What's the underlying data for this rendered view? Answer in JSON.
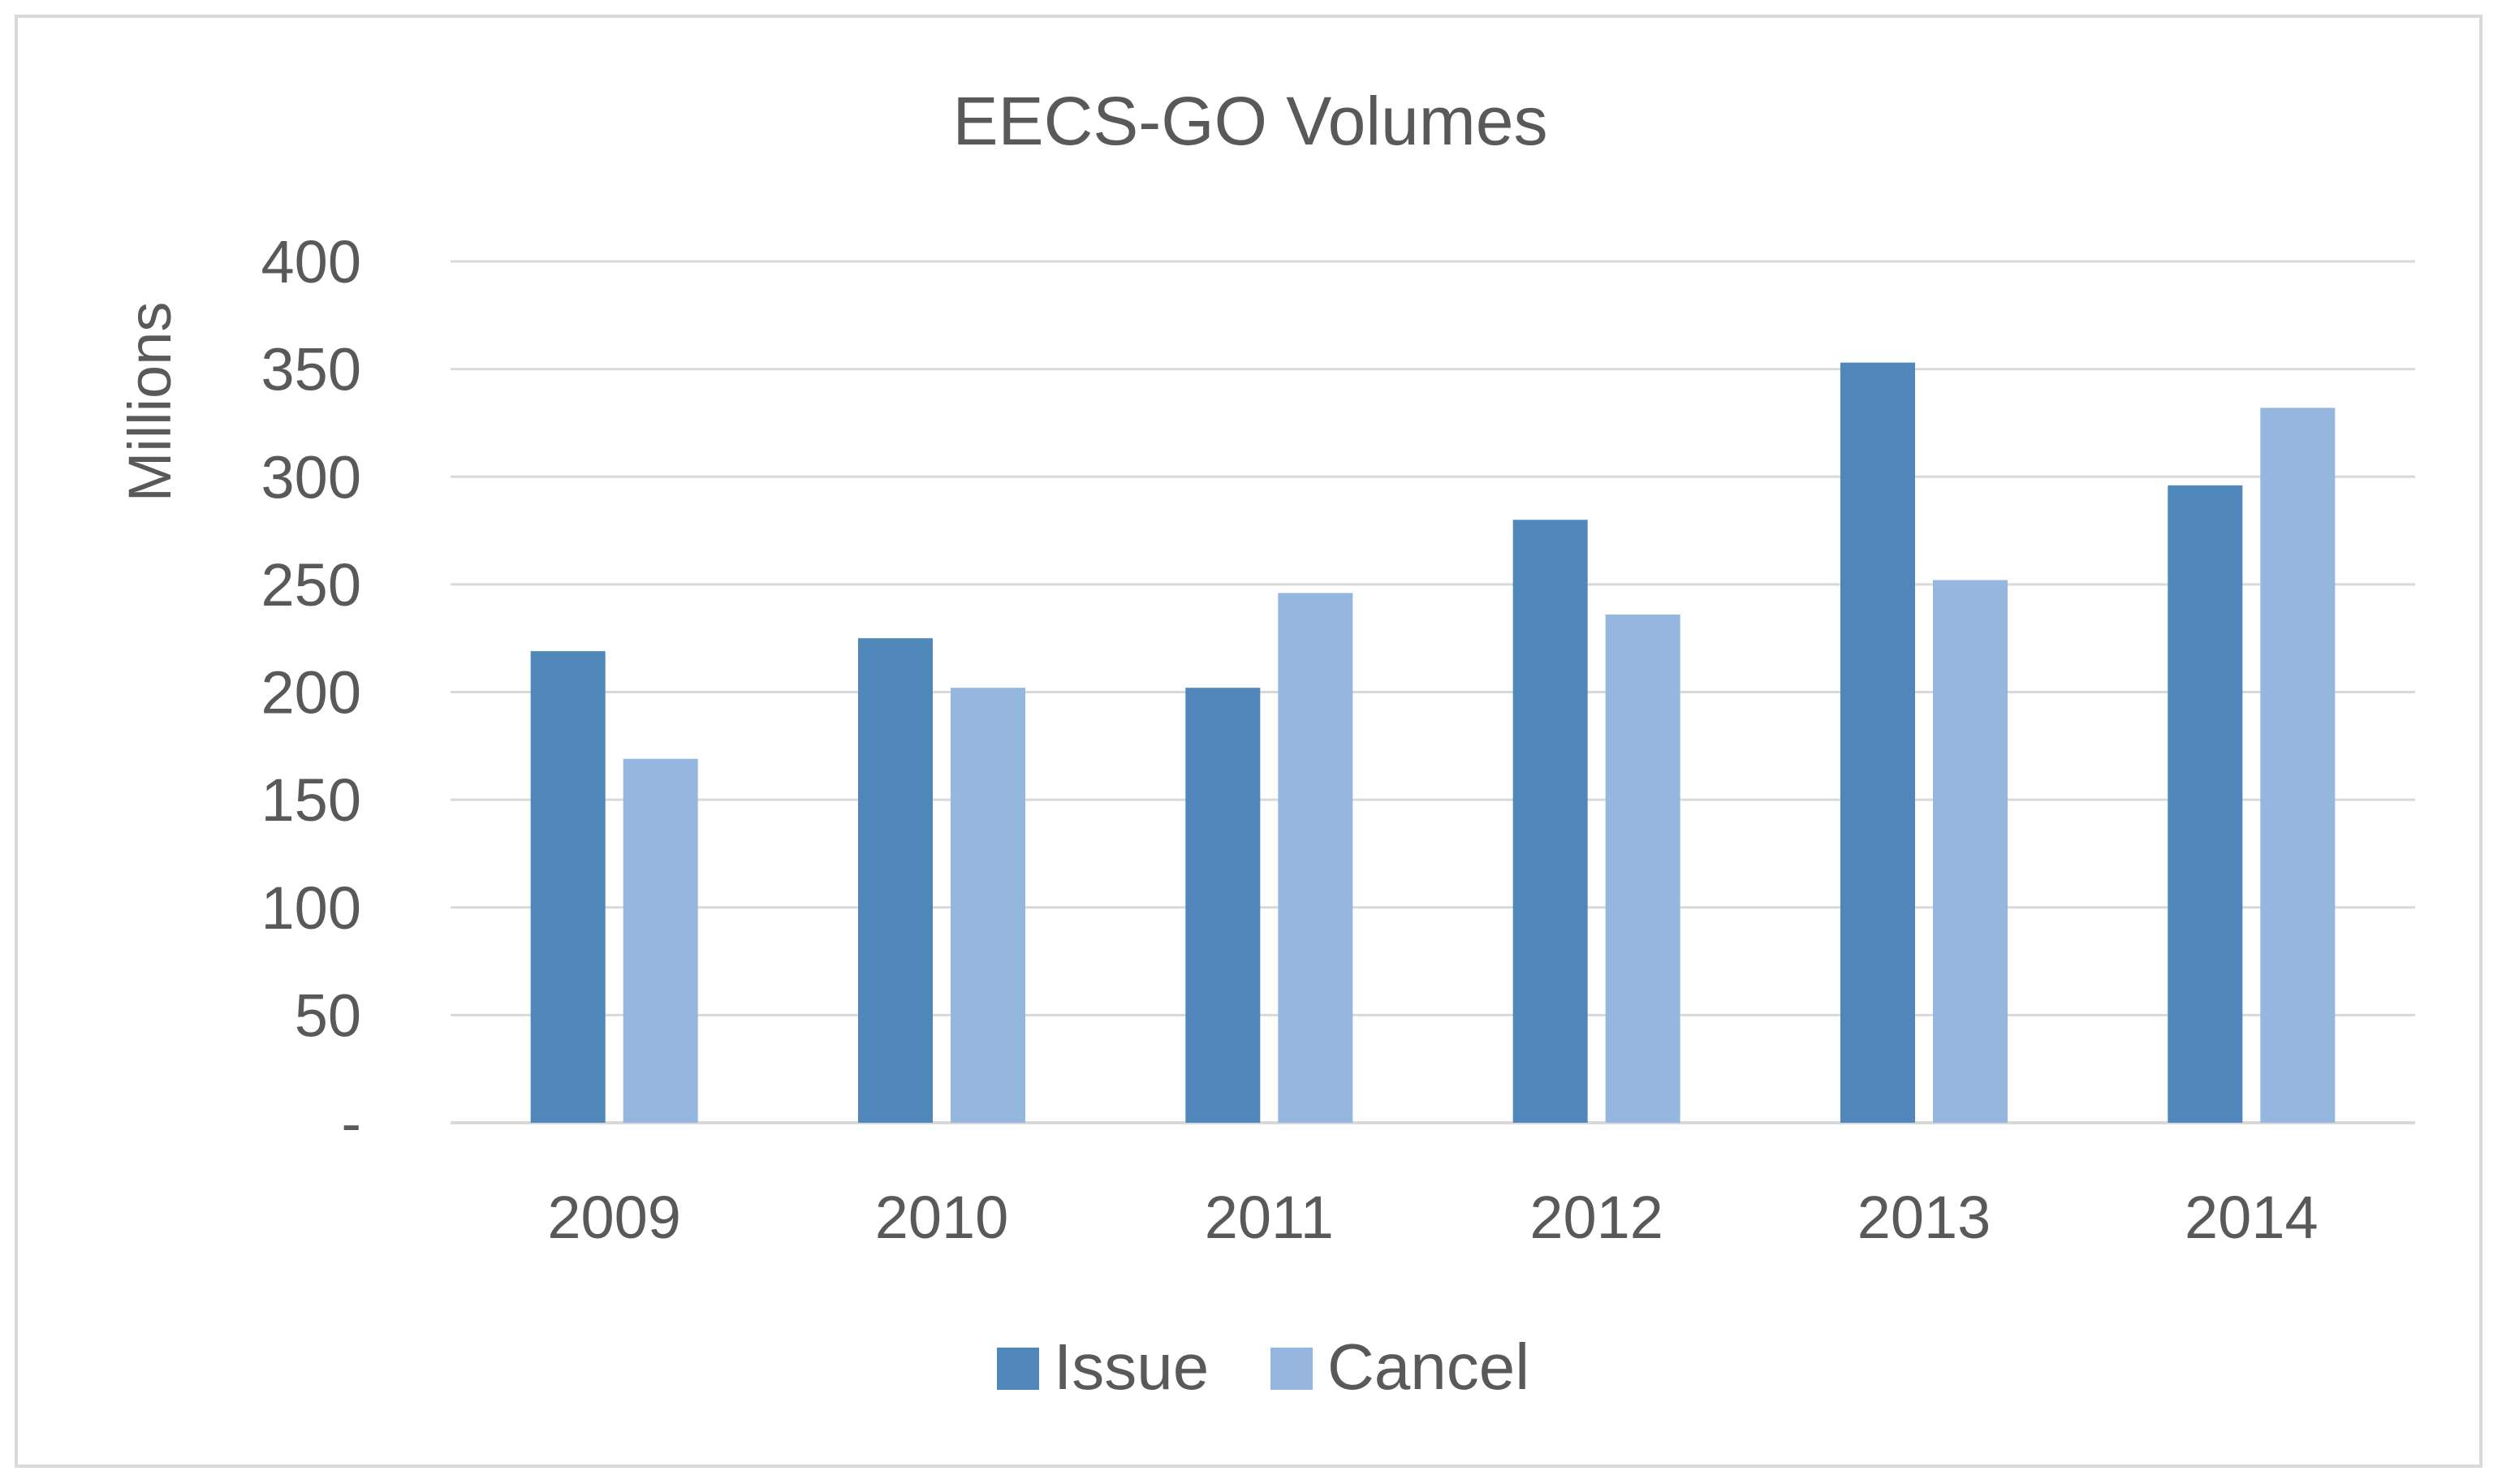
{
  "chart_data": {
    "type": "bar",
    "title": "EECS-GO Volumes",
    "xlabel": "",
    "ylabel": "Millions",
    "categories": [
      "2009",
      "2010",
      "2011",
      "2012",
      "2013",
      "2014"
    ],
    "series": [
      {
        "name": "Issue",
        "color": "#4f87bb",
        "values": [
          219,
          225,
          202,
          280,
          353,
          296
        ]
      },
      {
        "name": "Cancel",
        "color": "#95b7df",
        "values": [
          169,
          202,
          246,
          236,
          252,
          332
        ]
      }
    ],
    "ylim": [
      0,
      400
    ],
    "yticks": [
      {
        "value": 0,
        "label": "-"
      },
      {
        "value": 50,
        "label": "50"
      },
      {
        "value": 100,
        "label": "100"
      },
      {
        "value": 150,
        "label": "150"
      },
      {
        "value": 200,
        "label": "200"
      },
      {
        "value": 250,
        "label": "250"
      },
      {
        "value": 300,
        "label": "300"
      },
      {
        "value": 350,
        "label": "350"
      },
      {
        "value": 400,
        "label": "400"
      }
    ],
    "grid": true,
    "gridline_color": "#d9d9d9",
    "legend_position": "bottom"
  }
}
